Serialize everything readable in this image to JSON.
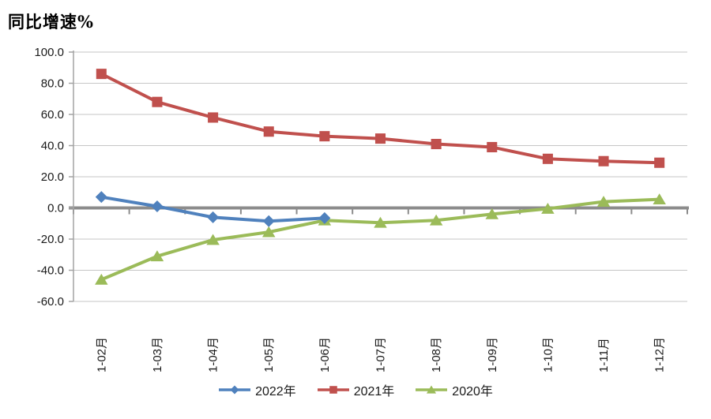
{
  "title": "同比增速%",
  "colors": {
    "series_2022": "#4F81BD",
    "series_2021": "#C0504D",
    "series_2020": "#9BBB59",
    "gridline": "#C6C6C6",
    "zero_axis": "#8C8C8C",
    "axis_line": "#A3A3A3",
    "axis_text": "#1a1a1a",
    "background": "#FFFFFF"
  },
  "chart_data": {
    "type": "line",
    "title": "同比增速%",
    "xlabel": "",
    "ylabel": "同比增速%",
    "categories": [
      "1-02月",
      "1-03月",
      "1-04月",
      "1-05月",
      "1-06月",
      "1-07月",
      "1-08月",
      "1-09月",
      "1-10月",
      "1-11月",
      "1-12月"
    ],
    "series": [
      {
        "name": "2022年",
        "color": "#4F81BD",
        "marker": "diamond",
        "values": [
          7.0,
          1.0,
          -6.0,
          -8.5,
          -6.5,
          null,
          null,
          null,
          null,
          null,
          null
        ]
      },
      {
        "name": "2021年",
        "color": "#C0504D",
        "marker": "square",
        "values": [
          86.0,
          68.0,
          58.0,
          49.0,
          46.0,
          44.5,
          41.0,
          39.0,
          31.5,
          30.0,
          29.0
        ]
      },
      {
        "name": "2020年",
        "color": "#9BBB59",
        "marker": "triangle",
        "values": [
          -46.0,
          -31.0,
          -20.5,
          -15.5,
          -8.0,
          -9.5,
          -8.0,
          -4.0,
          -0.5,
          4.0,
          5.5
        ]
      }
    ],
    "y_axis": {
      "min": -60,
      "max": 100,
      "step": 20,
      "tick_labels": [
        "100.0",
        "80.0",
        "60.0",
        "40.0",
        "20.0",
        "0.0",
        "-20.0",
        "-40.0",
        "-60.0"
      ]
    },
    "grid": true,
    "legend_position": "bottom"
  }
}
